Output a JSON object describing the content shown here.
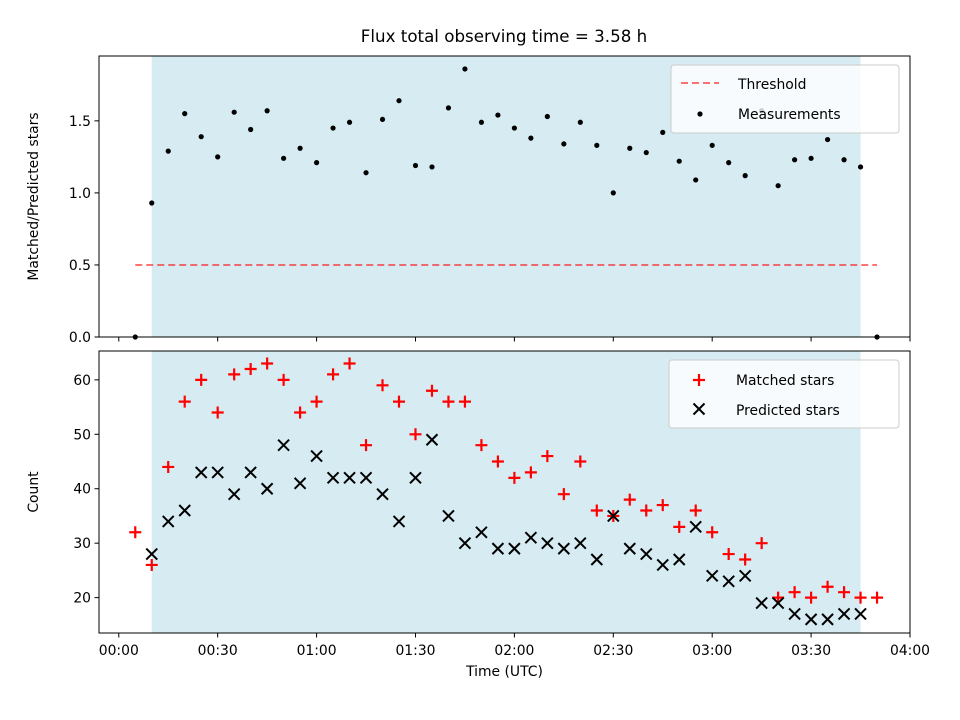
{
  "title": "Flux total observing time = 3.58 h",
  "colors": {
    "shade": "#add8e6",
    "threshold": "#ff0000",
    "measurement": "#000000",
    "matched": "#ff0000",
    "predicted": "#000000"
  },
  "chart_data": [
    {
      "type": "scatter",
      "panel": "top",
      "ylabel": "Matched/Predicted stars",
      "ylim": [
        0,
        1.95
      ],
      "yticks": [
        0.0,
        0.5,
        1.0,
        1.5
      ],
      "ytick_labels": [
        "0.0",
        "0.5",
        "1.0",
        "1.5"
      ],
      "xlim_minutes": [
        -6,
        240
      ],
      "shaded_interval_minutes": [
        10,
        225
      ],
      "legend_placement": "top-right",
      "threshold": {
        "name": "Threshold",
        "y": 0.5,
        "x_minutes": [
          5,
          230
        ]
      },
      "series": [
        {
          "name": "Measurements",
          "x_minutes": [
            5,
            10,
            15,
            20,
            25,
            30,
            35,
            40,
            45,
            50,
            55,
            60,
            65,
            70,
            75,
            80,
            85,
            90,
            95,
            100,
            105,
            110,
            115,
            120,
            125,
            130,
            135,
            140,
            145,
            150,
            155,
            160,
            165,
            170,
            175,
            180,
            185,
            190,
            195,
            200,
            205,
            210,
            215,
            220,
            225,
            230
          ],
          "y": [
            0.0,
            0.93,
            1.29,
            1.55,
            1.39,
            1.25,
            1.56,
            1.44,
            1.57,
            1.24,
            1.31,
            1.21,
            1.45,
            1.49,
            1.14,
            1.51,
            1.64,
            1.19,
            1.18,
            1.59,
            1.86,
            1.49,
            1.54,
            1.45,
            1.38,
            1.53,
            1.34,
            1.49,
            1.33,
            1.0,
            1.31,
            1.28,
            1.42,
            1.22,
            1.09,
            1.33,
            1.21,
            1.12,
            1.57,
            1.05,
            1.23,
            1.24,
            1.37,
            1.23,
            1.18,
            0.0
          ]
        }
      ]
    },
    {
      "type": "scatter",
      "panel": "bottom",
      "xlabel": "Time (UTC)",
      "ylabel": "Count",
      "ylim": [
        13.5,
        65.3
      ],
      "yticks": [
        20,
        30,
        40,
        50,
        60
      ],
      "ytick_labels": [
        "20",
        "30",
        "40",
        "50",
        "60"
      ],
      "xlim_minutes": [
        -6,
        240
      ],
      "xticks_minutes": [
        0,
        30,
        60,
        90,
        120,
        150,
        180,
        210,
        240
      ],
      "xtick_labels": [
        "00:00",
        "00:30",
        "01:00",
        "01:30",
        "02:00",
        "02:30",
        "03:00",
        "03:30",
        "04:00"
      ],
      "shaded_interval_minutes": [
        10,
        225
      ],
      "legend_placement": "top-right",
      "series": [
        {
          "name": "Matched stars",
          "marker": "+",
          "x_minutes": [
            5,
            10,
            15,
            20,
            25,
            30,
            35,
            40,
            45,
            50,
            55,
            60,
            65,
            70,
            75,
            80,
            85,
            90,
            95,
            100,
            105,
            110,
            115,
            120,
            125,
            130,
            135,
            140,
            145,
            150,
            155,
            160,
            165,
            170,
            175,
            180,
            185,
            190,
            195,
            200,
            205,
            210,
            215,
            220,
            225,
            230
          ],
          "y": [
            32,
            26,
            44,
            56,
            60,
            54,
            61,
            62,
            63,
            60,
            54,
            56,
            61,
            63,
            48,
            59,
            56,
            50,
            58,
            56,
            56,
            48,
            45,
            42,
            43,
            46,
            39,
            45,
            36,
            35,
            38,
            36,
            37,
            33,
            36,
            32,
            28,
            27,
            30,
            20,
            21,
            20,
            22,
            21,
            20,
            20
          ]
        },
        {
          "name": "Predicted stars",
          "marker": "x",
          "x_minutes": [
            10,
            15,
            20,
            25,
            30,
            35,
            40,
            45,
            50,
            55,
            60,
            65,
            70,
            75,
            80,
            85,
            90,
            95,
            100,
            105,
            110,
            115,
            120,
            125,
            130,
            135,
            140,
            145,
            150,
            155,
            160,
            165,
            170,
            175,
            180,
            185,
            190,
            195,
            200,
            205,
            210,
            215,
            220,
            225
          ],
          "y": [
            28,
            34,
            36,
            43,
            43,
            39,
            43,
            40,
            48,
            41,
            46,
            42,
            42,
            42,
            39,
            34,
            42,
            49,
            35,
            30,
            32,
            29,
            29,
            31,
            30,
            29,
            30,
            27,
            35,
            29,
            28,
            26,
            27,
            33,
            24,
            23,
            24,
            19,
            19,
            17,
            16,
            16,
            17,
            17
          ]
        }
      ]
    }
  ]
}
